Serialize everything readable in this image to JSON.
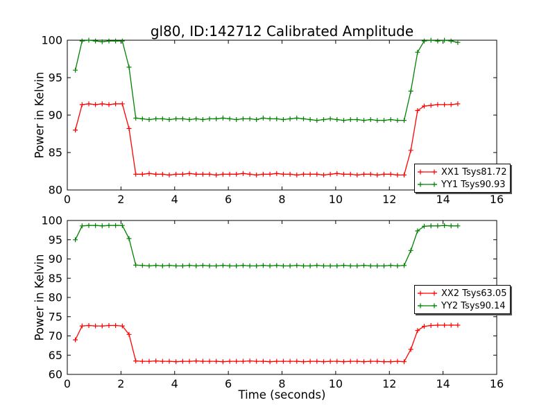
{
  "chart_data": [
    {
      "type": "line",
      "title": "gl80, ID:142712 Calibrated Amplitude",
      "xlabel": "",
      "ylabel": "Power in Kelvin",
      "xlim": [
        0,
        16
      ],
      "ylim": [
        80,
        100
      ],
      "xticks": [
        0,
        2,
        4,
        6,
        8,
        10,
        12,
        14,
        16
      ],
      "yticks": [
        80,
        85,
        90,
        95,
        100
      ],
      "grid": false,
      "marker": "plus",
      "legend": {
        "location": "lower-right",
        "entries": [
          {
            "label": "XX1 Tsys81.72",
            "color": "#ff0000"
          },
          {
            "label": "YY1 Tsys90.93",
            "color": "#008000"
          }
        ]
      },
      "x": [
        0.3,
        0.55,
        0.8,
        1.05,
        1.3,
        1.55,
        1.8,
        2.05,
        2.3,
        2.55,
        2.8,
        3.05,
        3.3,
        3.55,
        3.8,
        4.05,
        4.3,
        4.55,
        4.8,
        5.05,
        5.3,
        5.55,
        5.8,
        6.05,
        6.3,
        6.55,
        6.8,
        7.05,
        7.3,
        7.55,
        7.8,
        8.05,
        8.3,
        8.55,
        8.8,
        9.05,
        9.3,
        9.55,
        9.8,
        10.05,
        10.3,
        10.55,
        10.8,
        11.05,
        11.3,
        11.55,
        11.8,
        12.05,
        12.3,
        12.55,
        12.8,
        13.05,
        13.3,
        13.55,
        13.8,
        14.05,
        14.3,
        14.55
      ],
      "series": [
        {
          "name": "XX1",
          "color": "#ff0000",
          "values": [
            88.0,
            91.4,
            91.5,
            91.4,
            91.5,
            91.4,
            91.5,
            91.5,
            88.2,
            82.1,
            82.1,
            82.2,
            82.1,
            82.1,
            82.0,
            82.1,
            82.1,
            82.2,
            82.1,
            82.1,
            82.1,
            82.0,
            82.1,
            82.1,
            82.1,
            82.2,
            82.1,
            82.0,
            82.1,
            82.1,
            82.2,
            82.1,
            82.1,
            82.0,
            82.1,
            82.1,
            82.1,
            82.0,
            82.1,
            82.2,
            82.1,
            82.1,
            82.0,
            82.1,
            82.1,
            82.0,
            82.1,
            82.1,
            82.0,
            82.0,
            85.3,
            90.6,
            91.2,
            91.3,
            91.4,
            91.4,
            91.4,
            91.5
          ]
        },
        {
          "name": "YY1",
          "color": "#008000",
          "values": [
            96.0,
            99.9,
            100.0,
            99.9,
            99.8,
            99.9,
            99.9,
            99.9,
            96.4,
            89.6,
            89.5,
            89.4,
            89.5,
            89.5,
            89.4,
            89.5,
            89.5,
            89.4,
            89.5,
            89.4,
            89.5,
            89.5,
            89.6,
            89.5,
            89.4,
            89.5,
            89.5,
            89.4,
            89.6,
            89.5,
            89.5,
            89.4,
            89.5,
            89.6,
            89.5,
            89.4,
            89.3,
            89.4,
            89.5,
            89.4,
            89.3,
            89.4,
            89.4,
            89.3,
            89.4,
            89.3,
            89.3,
            89.4,
            89.3,
            89.3,
            93.2,
            98.4,
            99.9,
            100.0,
            99.9,
            100.0,
            99.9,
            99.7
          ]
        }
      ]
    },
    {
      "type": "line",
      "title": "",
      "xlabel": "Time (seconds)",
      "ylabel": "Power in Kelvin",
      "xlim": [
        0,
        16
      ],
      "ylim": [
        60,
        100
      ],
      "xticks": [
        0,
        2,
        4,
        6,
        8,
        10,
        12,
        14,
        16
      ],
      "yticks": [
        60,
        65,
        70,
        75,
        80,
        85,
        90,
        95,
        100
      ],
      "grid": false,
      "marker": "plus",
      "legend": {
        "location": "center-right",
        "entries": [
          {
            "label": "XX2 Tsys63.05",
            "color": "#ff0000"
          },
          {
            "label": "YY2 Tsys90.14",
            "color": "#008000"
          }
        ]
      },
      "x": [
        0.3,
        0.55,
        0.8,
        1.05,
        1.3,
        1.55,
        1.8,
        2.05,
        2.3,
        2.55,
        2.8,
        3.05,
        3.3,
        3.55,
        3.8,
        4.05,
        4.3,
        4.55,
        4.8,
        5.05,
        5.3,
        5.55,
        5.8,
        6.05,
        6.3,
        6.55,
        6.8,
        7.05,
        7.3,
        7.55,
        7.8,
        8.05,
        8.3,
        8.55,
        8.8,
        9.05,
        9.3,
        9.55,
        9.8,
        10.05,
        10.3,
        10.55,
        10.8,
        11.05,
        11.3,
        11.55,
        11.8,
        12.05,
        12.3,
        12.55,
        12.8,
        13.05,
        13.3,
        13.55,
        13.8,
        14.05,
        14.3,
        14.55
      ],
      "series": [
        {
          "name": "XX2",
          "color": "#ff0000",
          "values": [
            69.0,
            72.6,
            72.7,
            72.6,
            72.6,
            72.7,
            72.7,
            72.6,
            70.4,
            63.5,
            63.4,
            63.4,
            63.5,
            63.4,
            63.4,
            63.3,
            63.4,
            63.4,
            63.5,
            63.4,
            63.4,
            63.4,
            63.3,
            63.4,
            63.4,
            63.4,
            63.5,
            63.4,
            63.4,
            63.3,
            63.4,
            63.4,
            63.4,
            63.4,
            63.3,
            63.4,
            63.4,
            63.3,
            63.4,
            63.4,
            63.3,
            63.4,
            63.4,
            63.3,
            63.4,
            63.4,
            63.3,
            63.3,
            63.4,
            63.3,
            66.5,
            71.4,
            72.5,
            72.7,
            72.8,
            72.8,
            72.8,
            72.8
          ]
        },
        {
          "name": "YY2",
          "color": "#008000",
          "values": [
            95.0,
            98.6,
            98.7,
            98.7,
            98.6,
            98.7,
            98.7,
            98.7,
            95.3,
            88.4,
            88.3,
            88.2,
            88.3,
            88.2,
            88.3,
            88.2,
            88.2,
            88.3,
            88.2,
            88.3,
            88.2,
            88.2,
            88.3,
            88.2,
            88.2,
            88.3,
            88.2,
            88.2,
            88.3,
            88.2,
            88.3,
            88.2,
            88.2,
            88.3,
            88.2,
            88.2,
            88.3,
            88.2,
            88.2,
            88.2,
            88.3,
            88.2,
            88.2,
            88.3,
            88.2,
            88.2,
            88.2,
            88.3,
            88.2,
            88.3,
            92.2,
            97.3,
            98.5,
            98.6,
            98.6,
            98.7,
            98.6,
            98.6
          ]
        }
      ]
    }
  ]
}
